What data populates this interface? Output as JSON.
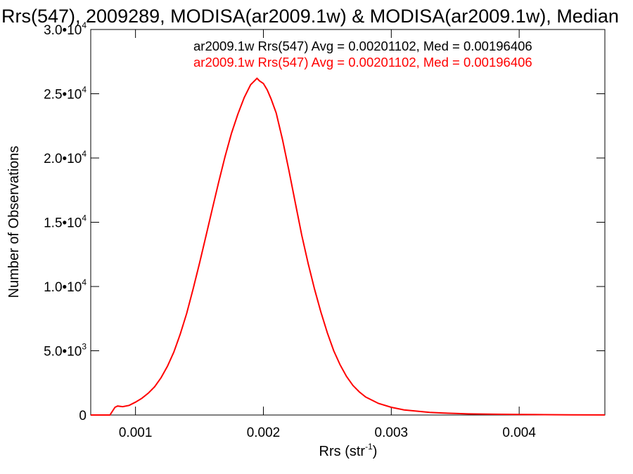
{
  "chart_data": {
    "type": "line",
    "title": "Rrs(547), 2009289, MODISA(ar2009.1w) & MODISA(ar2009.1w), Median",
    "xlabel": "Rrs (str",
    "xlabel_superscript": "-1",
    "xlabel_suffix": ")",
    "ylabel": "Number of Observations",
    "xlim": [
      0.00065,
      0.00467
    ],
    "ylim": [
      0,
      30000
    ],
    "x_ticks": [
      {
        "value": 0.001,
        "label": "0.001"
      },
      {
        "value": 0.002,
        "label": "0.002"
      },
      {
        "value": 0.003,
        "label": "0.003"
      },
      {
        "value": 0.004,
        "label": "0.004"
      }
    ],
    "y_ticks": [
      {
        "value": 0,
        "mantissa": "0",
        "exponent": ""
      },
      {
        "value": 5000,
        "mantissa": "5.0•10",
        "exponent": "3"
      },
      {
        "value": 10000,
        "mantissa": "1.0•10",
        "exponent": "4"
      },
      {
        "value": 15000,
        "mantissa": "1.5•10",
        "exponent": "4"
      },
      {
        "value": 20000,
        "mantissa": "2.0•10",
        "exponent": "4"
      },
      {
        "value": 25000,
        "mantissa": "2.5•10",
        "exponent": "4"
      },
      {
        "value": 30000,
        "mantissa": "3.0•10",
        "exponent": "4"
      }
    ],
    "legend": [
      {
        "text": "ar2009.1w Rrs(547) Avg = 0.00201102, Med = 0.00196406",
        "color": "#000000"
      },
      {
        "text": "ar2009.1w Rrs(547) Avg = 0.00201102, Med = 0.00196406",
        "color": "#ff0000"
      }
    ],
    "series": [
      {
        "color": "#ff0000",
        "x": [
          0.00065,
          0.00075,
          0.0008,
          0.00082,
          0.00084,
          0.00086,
          0.0009,
          0.00095,
          0.001,
          0.00105,
          0.0011,
          0.00115,
          0.0012,
          0.00125,
          0.0013,
          0.00135,
          0.0014,
          0.00145,
          0.0015,
          0.00155,
          0.0016,
          0.00165,
          0.0017,
          0.00175,
          0.0018,
          0.00185,
          0.0019,
          0.00193,
          0.00195,
          0.00197,
          0.002,
          0.00203,
          0.00206,
          0.0021,
          0.00215,
          0.0022,
          0.00225,
          0.0023,
          0.00235,
          0.0024,
          0.00245,
          0.0025,
          0.00255,
          0.0026,
          0.00265,
          0.0027,
          0.00275,
          0.0028,
          0.0029,
          0.003,
          0.0031,
          0.0032,
          0.0033,
          0.0034,
          0.0035,
          0.0036,
          0.0038,
          0.004,
          0.0042,
          0.0044,
          0.00467
        ],
        "y": [
          0,
          0,
          0,
          300,
          600,
          700,
          650,
          750,
          1000,
          1300,
          1700,
          2200,
          2900,
          3800,
          4900,
          6300,
          7900,
          9800,
          11800,
          13900,
          16000,
          18100,
          20100,
          21900,
          23400,
          24700,
          25700,
          26000,
          26200,
          26000,
          25800,
          25300,
          24600,
          23500,
          21400,
          19000,
          16500,
          14000,
          11800,
          9800,
          8000,
          6400,
          5000,
          3900,
          3000,
          2300,
          1800,
          1400,
          900,
          600,
          400,
          300,
          200,
          160,
          120,
          90,
          60,
          40,
          25,
          15,
          5
        ]
      }
    ]
  }
}
